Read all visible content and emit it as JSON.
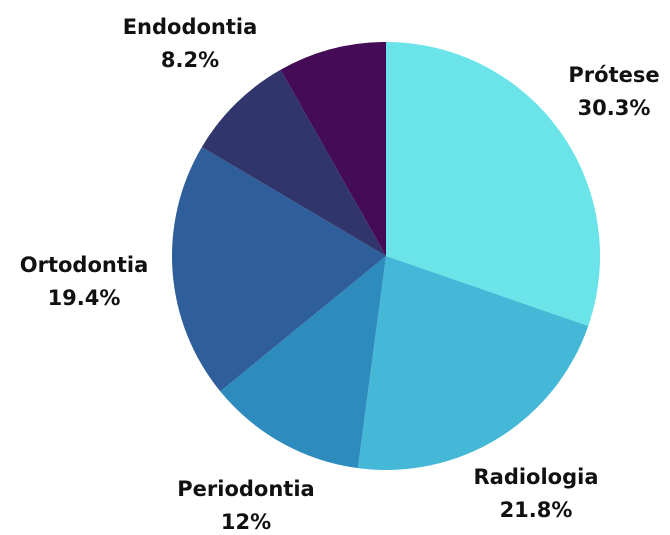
{
  "chart_data": {
    "type": "pie",
    "categories": [
      "Prótese",
      "Radiologia",
      "Periodontia",
      "Ortodontia",
      null,
      "Endodontia"
    ],
    "values": [
      30.3,
      21.8,
      12,
      19.4,
      8.3,
      8.2
    ],
    "value_labels": [
      "30.3%",
      "21.8%",
      "12%",
      "19.4%",
      null,
      "8.2%"
    ],
    "colors": [
      "#6ae4e8",
      "#44b8d6",
      "#2e8bbd",
      "#2f5f9a",
      "#30366b",
      "#440b57"
    ]
  }
}
